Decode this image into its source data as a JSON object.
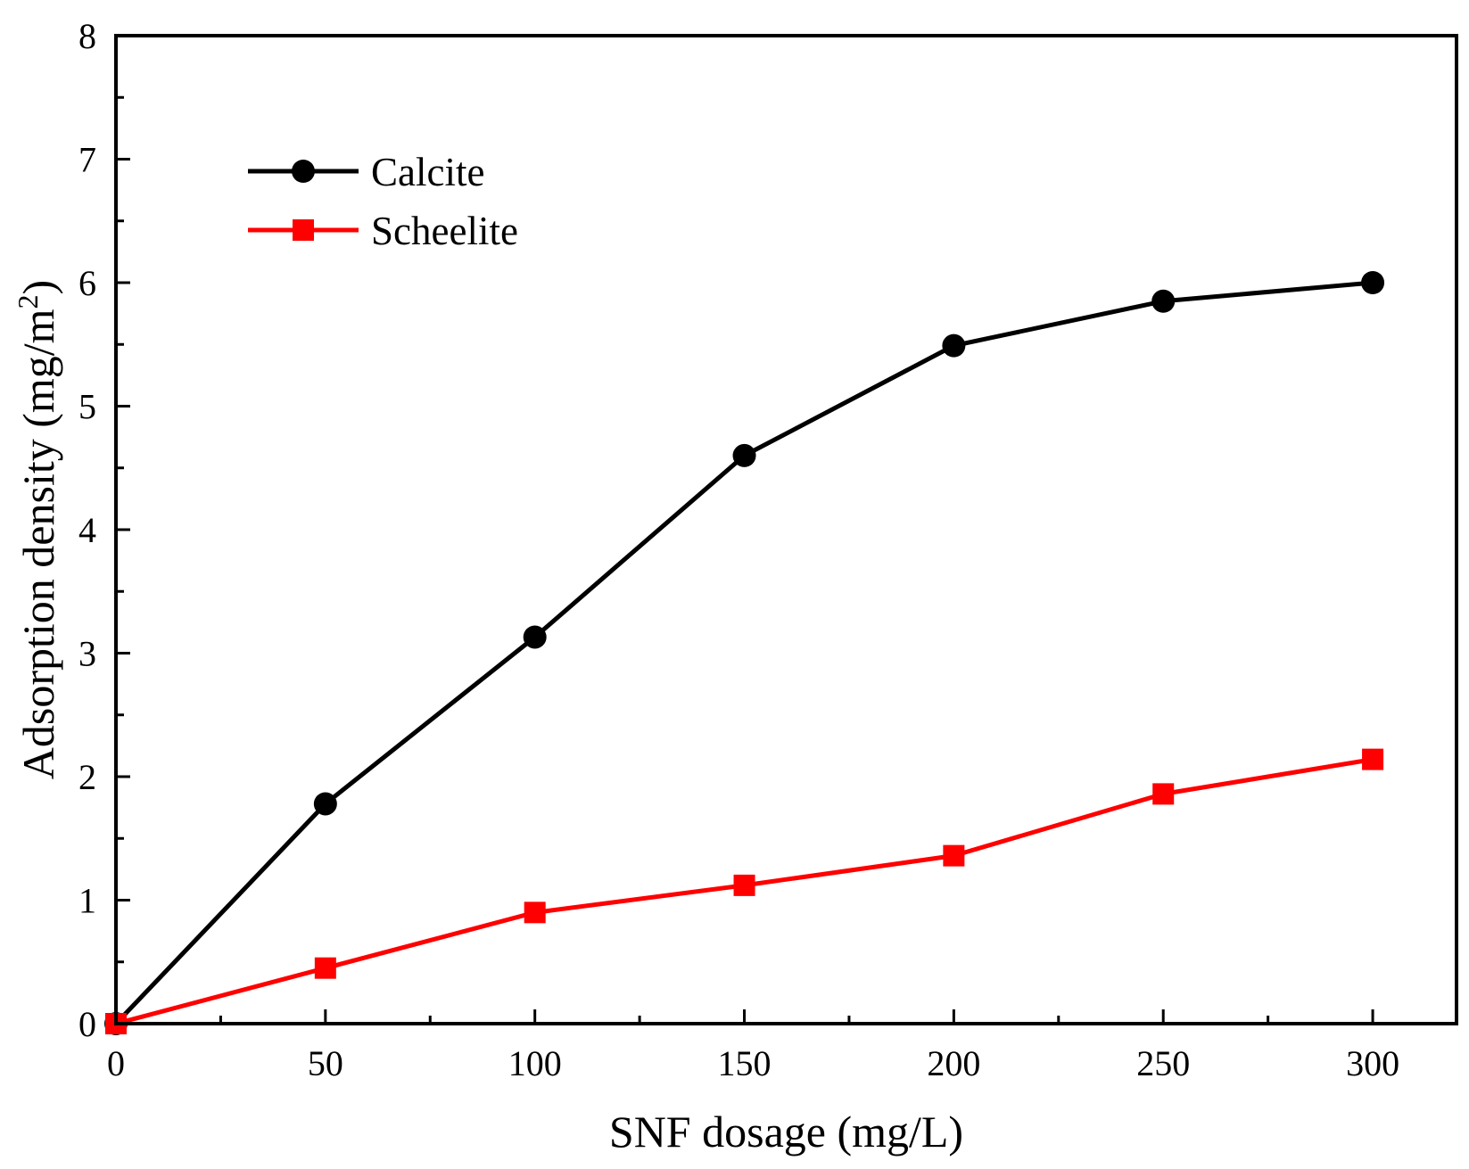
{
  "chart_data": {
    "type": "line",
    "title": "",
    "xlabel": "SNF dosage (mg/L)",
    "ylabel": {
      "text": "Adsorption density (mg/m",
      "superscript": "2",
      "close": ")"
    },
    "xlim": [
      0,
      320
    ],
    "ylim": [
      0,
      8
    ],
    "x_ticks": [
      0,
      50,
      100,
      150,
      200,
      250,
      300
    ],
    "x_tick_labels": [
      "0",
      "50",
      "100",
      "150",
      "200",
      "250",
      "300"
    ],
    "y_ticks": [
      0,
      1,
      2,
      3,
      4,
      5,
      6,
      7,
      8
    ],
    "y_tick_labels": [
      "0",
      "1",
      "2",
      "3",
      "4",
      "5",
      "6",
      "7",
      "8"
    ],
    "grid": false,
    "legend_position": "top-left",
    "x": [
      0,
      50,
      100,
      150,
      200,
      250,
      300
    ],
    "series": [
      {
        "name": "Calcite",
        "color": "#000000",
        "marker": "circle",
        "values": [
          0,
          1.78,
          3.13,
          4.6,
          5.49,
          5.85,
          6.0
        ]
      },
      {
        "name": "Scheelite",
        "color": "#ff0000",
        "marker": "square",
        "values": [
          0,
          0.45,
          0.9,
          1.12,
          1.36,
          1.86,
          2.14
        ]
      }
    ]
  }
}
